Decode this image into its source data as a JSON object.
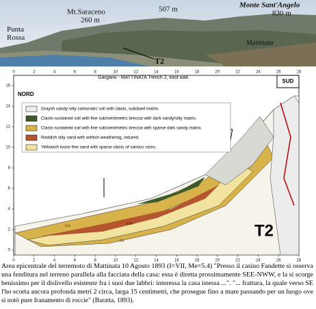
{
  "photo": {
    "labels": [
      "Punta\nRossa",
      "Mt.Saraceno",
      "260 m",
      "507 m",
      "Monte Sant'Angelo",
      "830 m",
      "Mattinata",
      "T2"
    ]
  },
  "diagram": {
    "title": "Gargano - MATTINATA Trench 2, east wall.",
    "left_label": "NORD",
    "right_label": "SUD",
    "big_label": "T2",
    "legend": [
      "Graysh sandy-silty carbonatic soil with clasts, subdued matrix.",
      "Clasts-sustained soil with fine sub/centimetric breccia with dark sandy/silty matrix.",
      "Clasts-sustained soil with fine sub/centimetric breccia with sparse dark sandy matrix.",
      "Reddish silty sand with withish weathering, indured.",
      "Yellowish loose fine sand with sparse clasts of various sizes."
    ],
    "unit_labels": [
      "C11",
      "C10",
      "C9"
    ],
    "xticks": [
      0,
      2,
      4,
      6,
      8,
      10,
      12,
      14,
      16,
      18,
      20,
      22,
      24,
      26,
      28
    ],
    "yticks": [
      0,
      2,
      4,
      6,
      8,
      10,
      12,
      14,
      16
    ]
  },
  "caption": [
    "Area epicentrale del terremoto di Mattinata 10 Agosto 1893 (I=VII, Me=5.4) \"Presso il casino Fandette si osserva",
    "una fenditura nel terreno parallela alla facciata della casa: essa è diretta prossimamente SEE-NWW, e la si scorge",
    "benissimo per il dislivello esistente fra i suoi due labbri: interessa la casa istessa ...\". \"... frattura, la quale verso SE",
    "l'ho scorta ancora profonda metri 2 circa, larga 15 centimetri, che prosegue fino a mare passando per un luogo ove",
    "si notò pure franamento di roccie\" (Baratta, 1893)."
  ]
}
